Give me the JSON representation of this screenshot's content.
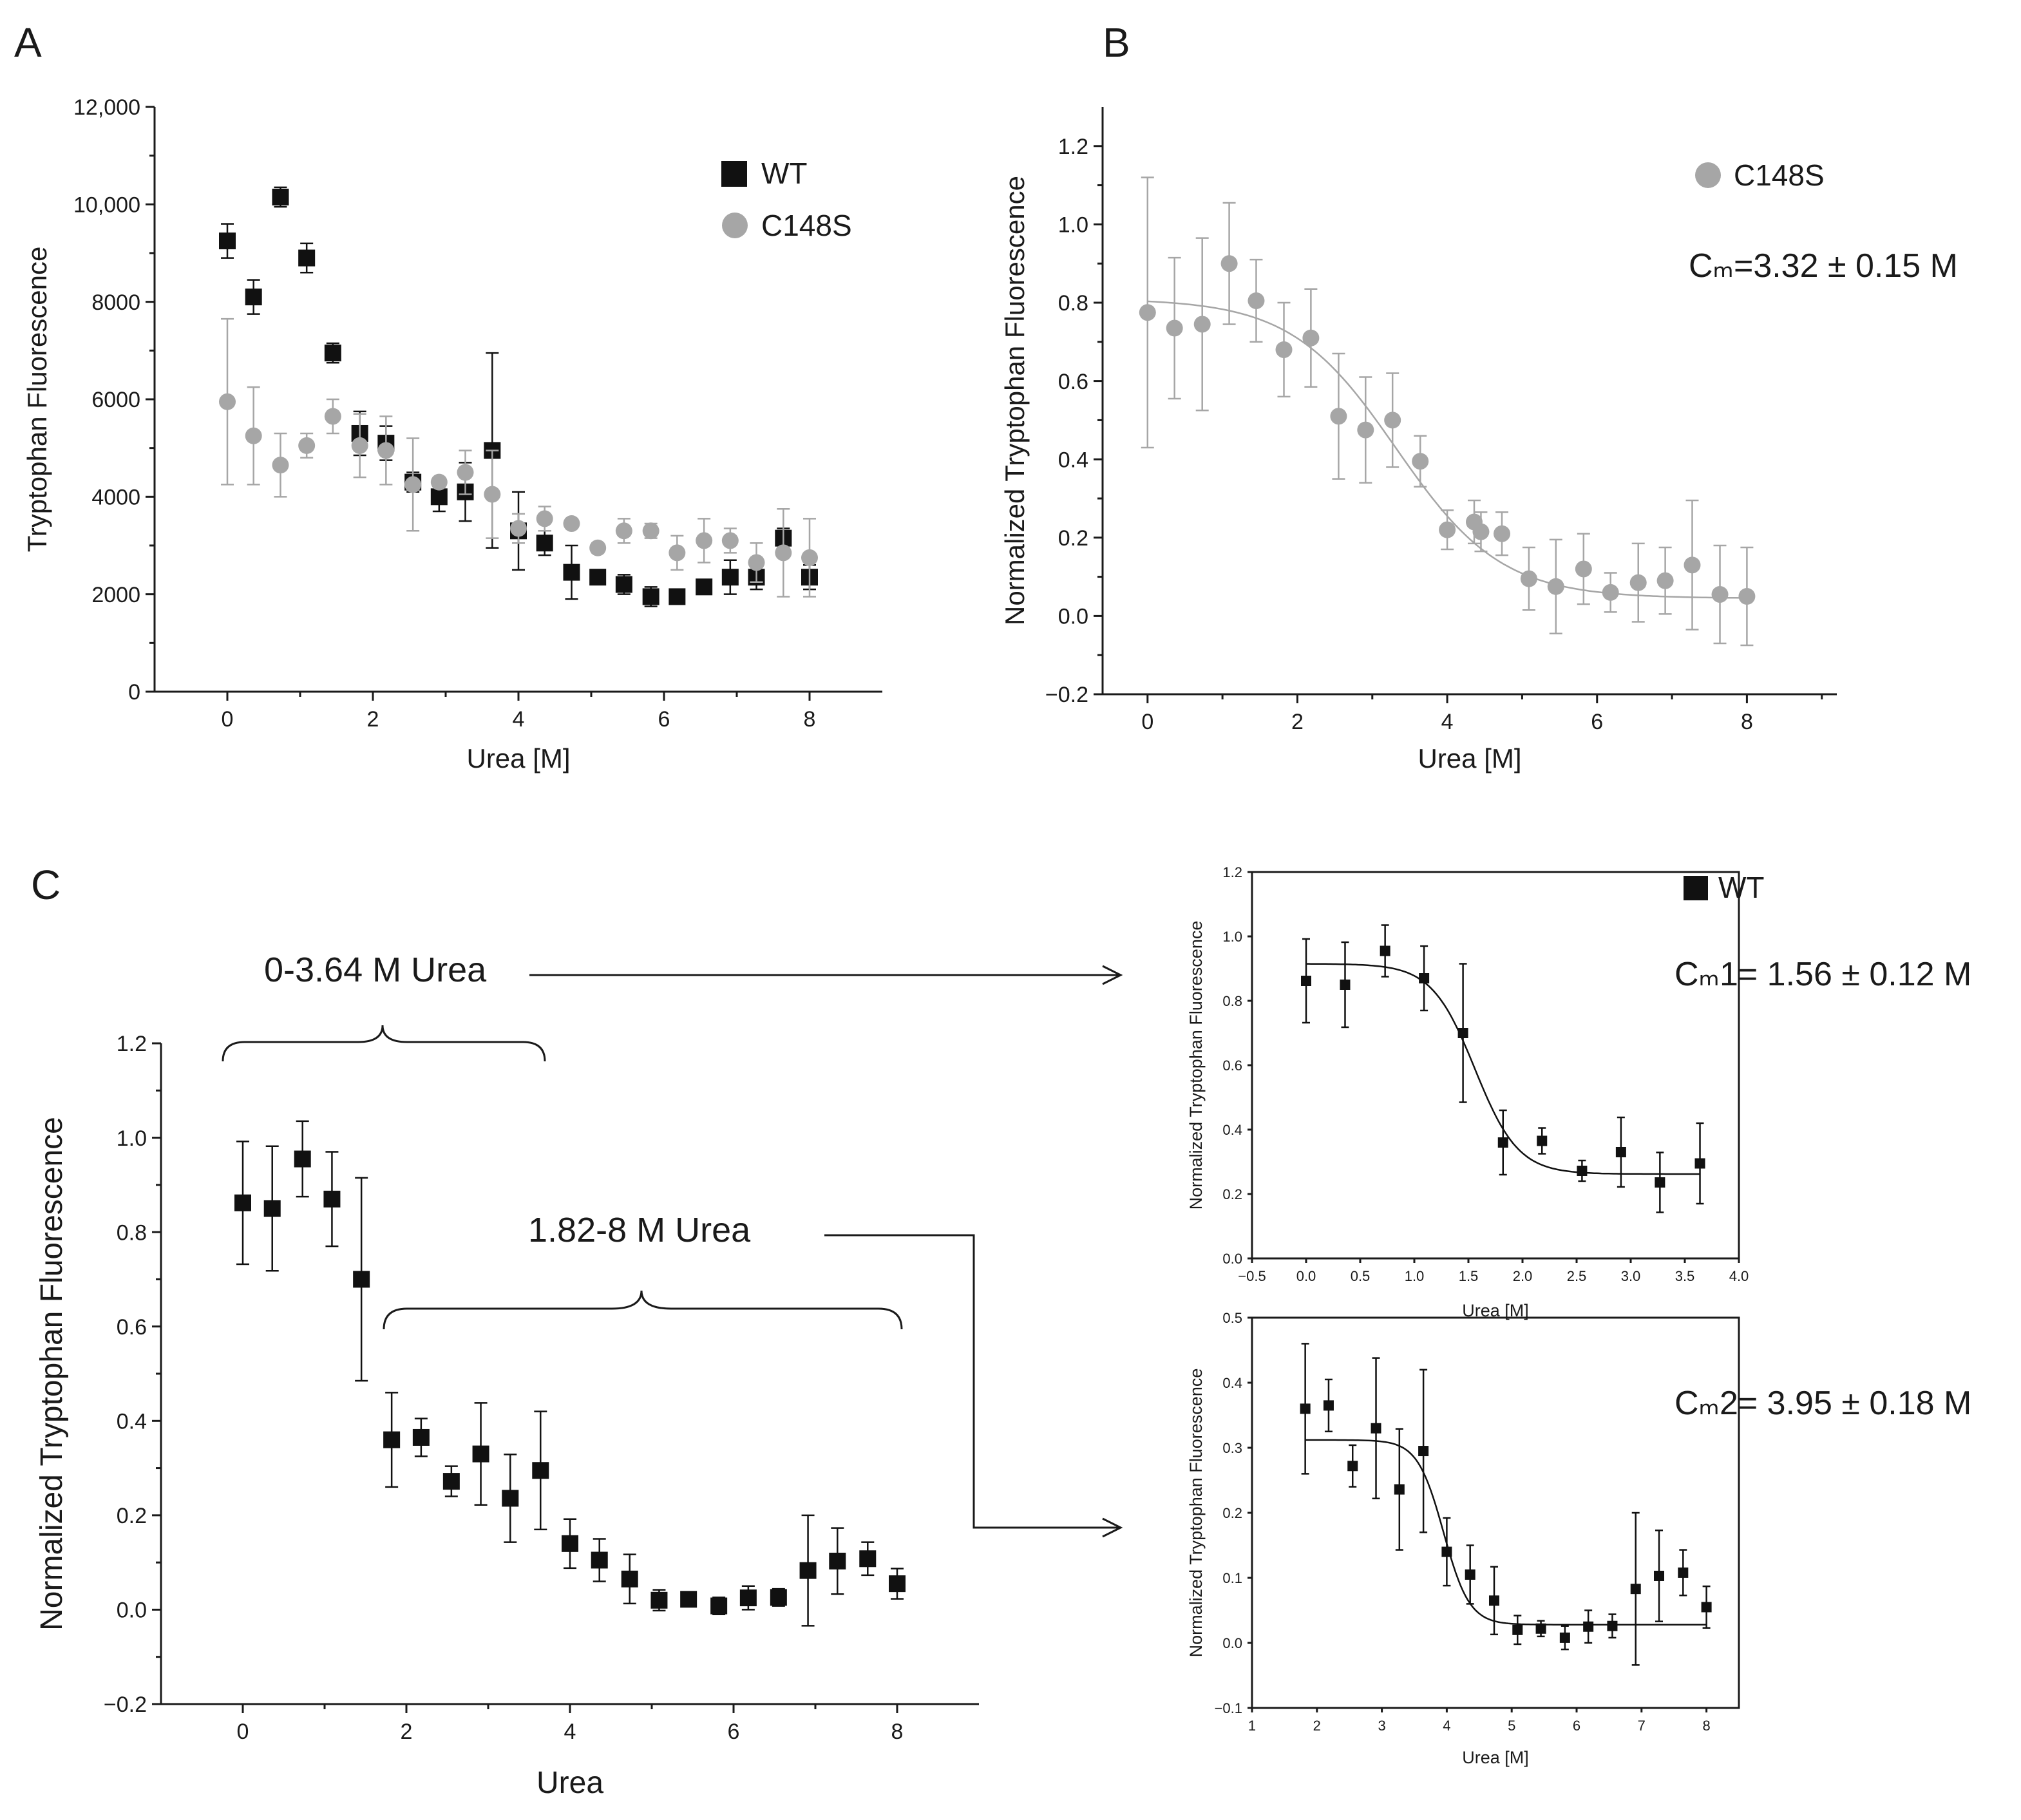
{
  "panel_labels": {
    "a": "A",
    "b": "B",
    "c": "C"
  },
  "annotations": {
    "range1": "0-3.64 M Urea",
    "range2": "1.82-8 M Urea",
    "cm_b": "Cₘ=3.32 ± 0.15 M",
    "cm1": "Cₘ1= 1.56 ± 0.12 M",
    "cm2": "Cₘ2= 3.95 ± 0.18 M"
  },
  "colors": {
    "wt": "#111111",
    "c148s": "#a6a6a6",
    "axis": "#1a1a1a"
  },
  "chart_data": [
    {
      "id": "A",
      "type": "scatter",
      "xlabel": "Urea [M]",
      "ylabel": "Tryptophan Fluorescence",
      "xlim": [
        -1,
        9
      ],
      "ylim": [
        0,
        12000
      ],
      "xticks": [
        0,
        2,
        4,
        6,
        8
      ],
      "xtick_labels": [
        "0",
        "2",
        "4",
        "6",
        "8"
      ],
      "yticks": [
        0,
        2000,
        4000,
        6000,
        8000,
        10000,
        12000
      ],
      "ytick_labels": [
        "0",
        "2000",
        "4000",
        "6000",
        "8000",
        "10,000",
        "12,000"
      ],
      "legend": "top-right",
      "grid": false,
      "series": [
        {
          "name": "WT",
          "marker": "square",
          "x": [
            0,
            0.36,
            0.73,
            1.09,
            1.45,
            1.82,
            2.18,
            2.55,
            2.91,
            3.27,
            3.64,
            4.0,
            4.36,
            4.73,
            5.09,
            5.45,
            5.82,
            6.18,
            6.55,
            6.91,
            7.27,
            7.64,
            8.0
          ],
          "y": [
            9250,
            8100,
            10150,
            8900,
            6950,
            5300,
            5100,
            4300,
            4000,
            4100,
            4950,
            3300,
            3050,
            2450,
            2350,
            2200,
            1950,
            1950,
            2150,
            2350,
            2350,
            3150,
            2350
          ],
          "err": [
            350,
            350,
            200,
            300,
            200,
            450,
            350,
            200,
            300,
            600,
            2000,
            800,
            250,
            550,
            150,
            200,
            200,
            100,
            100,
            350,
            250,
            200,
            250
          ]
        },
        {
          "name": "C148S",
          "marker": "circle",
          "x": [
            0,
            0.36,
            0.73,
            1.09,
            1.45,
            1.82,
            2.18,
            2.55,
            2.91,
            3.27,
            3.64,
            4.0,
            4.36,
            4.73,
            5.09,
            5.45,
            5.82,
            6.18,
            6.55,
            6.91,
            7.27,
            7.64,
            8.0
          ],
          "y": [
            5950,
            5250,
            4650,
            5050,
            5650,
            5050,
            4950,
            4250,
            4300,
            4500,
            4050,
            3350,
            3550,
            3450,
            2950,
            3300,
            3300,
            2850,
            3100,
            3100,
            2650,
            2850,
            2750
          ],
          "err": [
            1700,
            1000,
            650,
            250,
            350,
            650,
            700,
            950,
            100,
            450,
            900,
            300,
            250,
            100,
            100,
            250,
            150,
            350,
            450,
            250,
            400,
            900,
            800
          ]
        }
      ]
    },
    {
      "id": "B",
      "type": "scatter",
      "xlabel": "Urea [M]",
      "ylabel": "Normalized Tryptophan Fluorescence",
      "xlim": [
        -0.6,
        9.2
      ],
      "ylim": [
        -0.2,
        1.3
      ],
      "xticks": [
        0,
        2,
        4,
        6,
        8
      ],
      "xtick_labels": [
        "0",
        "2",
        "4",
        "6",
        "8"
      ],
      "yticks": [
        -0.2,
        0,
        0.2,
        0.4,
        0.6,
        0.8,
        1.0,
        1.2
      ],
      "ytick_labels": [
        "−0.2",
        "0.0",
        "0.2",
        "0.4",
        "0.6",
        "0.8",
        "1.0",
        "1.2"
      ],
      "legend": "top-right",
      "grid": false,
      "series": [
        {
          "name": "C148S",
          "marker": "circle",
          "x": [
            0,
            0.36,
            0.73,
            1.09,
            1.45,
            1.82,
            2.18,
            2.55,
            2.91,
            3.27,
            3.64,
            4.0,
            4.36,
            4.45,
            4.73,
            5.09,
            5.45,
            5.82,
            6.18,
            6.55,
            6.91,
            7.27,
            7.64,
            8.0
          ],
          "y": [
            0.775,
            0.735,
            0.745,
            0.9,
            0.805,
            0.68,
            0.71,
            0.51,
            0.475,
            0.5,
            0.395,
            0.22,
            0.24,
            0.215,
            0.21,
            0.095,
            0.075,
            0.12,
            0.06,
            0.085,
            0.09,
            0.13,
            0.055,
            0.05
          ],
          "err": [
            0.345,
            0.18,
            0.22,
            0.155,
            0.105,
            0.12,
            0.125,
            0.16,
            0.135,
            0.12,
            0.065,
            0.05,
            0.055,
            0.05,
            0.055,
            0.08,
            0.12,
            0.09,
            0.05,
            0.1,
            0.085,
            0.165,
            0.125,
            0.125
          ]
        }
      ],
      "fit": {
        "top": 0.81,
        "bottom": 0.045,
        "cm": 3.32,
        "slope": 0.7
      }
    },
    {
      "id": "C-main",
      "type": "scatter",
      "xlabel": "Urea",
      "ylabel": "Normalized Tryptophan Fluorescence",
      "xlim": [
        -1,
        9
      ],
      "ylim": [
        -0.2,
        1.2
      ],
      "xticks": [
        0,
        2,
        4,
        6,
        8
      ],
      "xtick_labels": [
        "0",
        "2",
        "4",
        "6",
        "8"
      ],
      "yticks": [
        -0.2,
        0,
        0.2,
        0.4,
        0.6,
        0.8,
        1.0,
        1.2
      ],
      "ytick_labels": [
        "−0.2",
        "0.0",
        "0.2",
        "0.4",
        "0.6",
        "0.8",
        "1.0",
        "1.2"
      ],
      "grid": false,
      "series": [
        {
          "name": "WT",
          "marker": "square",
          "x": [
            0,
            0.36,
            0.73,
            1.09,
            1.45,
            1.82,
            2.18,
            2.55,
            2.91,
            3.27,
            3.64,
            4.0,
            4.36,
            4.73,
            5.09,
            5.45,
            5.82,
            6.18,
            6.55,
            6.91,
            7.27,
            7.64,
            8.0
          ],
          "y": [
            0.862,
            0.85,
            0.955,
            0.87,
            0.7,
            0.36,
            0.365,
            0.272,
            0.33,
            0.236,
            0.295,
            0.14,
            0.105,
            0.065,
            0.02,
            0.022,
            0.008,
            0.025,
            0.026,
            0.083,
            0.103,
            0.108,
            0.055
          ],
          "err": [
            0.13,
            0.132,
            0.08,
            0.1,
            0.215,
            0.1,
            0.04,
            0.032,
            0.108,
            0.093,
            0.125,
            0.052,
            0.045,
            0.052,
            0.022,
            0.012,
            0.018,
            0.025,
            0.018,
            0.117,
            0.07,
            0.035,
            0.032
          ]
        }
      ]
    },
    {
      "id": "C-inset1",
      "type": "scatter",
      "xlabel": "Urea [M]",
      "ylabel": "Normalized Tryptophan Fluorescence",
      "xlim": [
        -0.5,
        4.0
      ],
      "ylim": [
        0,
        1.2
      ],
      "xticks": [
        -0.5,
        0,
        0.5,
        1.0,
        1.5,
        2.0,
        2.5,
        3.0,
        3.5,
        4.0
      ],
      "xtick_labels": [
        "−0.5",
        "0.0",
        "0.5",
        "1.0",
        "1.5",
        "2.0",
        "2.5",
        "3.0",
        "3.5",
        "4.0"
      ],
      "yticks": [
        0,
        0.2,
        0.4,
        0.6,
        0.8,
        1.0,
        1.2
      ],
      "ytick_labels": [
        "0.0",
        "0.2",
        "0.4",
        "0.6",
        "0.8",
        "1.0",
        "1.2"
      ],
      "legend": "top-right",
      "grid": false,
      "series": [
        {
          "name": "WT",
          "marker": "square",
          "x": [
            0,
            0.36,
            0.73,
            1.09,
            1.45,
            1.82,
            2.18,
            2.55,
            2.91,
            3.27,
            3.64
          ],
          "y": [
            0.862,
            0.85,
            0.955,
            0.87,
            0.7,
            0.36,
            0.365,
            0.272,
            0.33,
            0.236,
            0.295
          ],
          "err": [
            0.13,
            0.132,
            0.08,
            0.1,
            0.215,
            0.1,
            0.04,
            0.032,
            0.108,
            0.093,
            0.125
          ]
        }
      ],
      "fit": {
        "top": 0.915,
        "bottom": 0.262,
        "cm": 1.56,
        "slope": 0.2
      }
    },
    {
      "id": "C-inset2",
      "type": "scatter",
      "xlabel": "Urea [M]",
      "ylabel": "Normalized Tryptophan Fluorescence",
      "xlim": [
        1,
        8.5
      ],
      "ylim": [
        -0.1,
        0.5
      ],
      "xticks": [
        1,
        2,
        3,
        4,
        5,
        6,
        7,
        8
      ],
      "xtick_labels": [
        "1",
        "2",
        "3",
        "4",
        "5",
        "6",
        "7",
        "8"
      ],
      "yticks": [
        -0.1,
        0,
        0.1,
        0.2,
        0.3,
        0.4,
        0.5
      ],
      "ytick_labels": [
        "−0.1",
        "0.0",
        "0.1",
        "0.2",
        "0.3",
        "0.4",
        "0.5"
      ],
      "grid": false,
      "series": [
        {
          "name": "WT",
          "marker": "square",
          "x": [
            1.82,
            2.18,
            2.55,
            2.91,
            3.27,
            3.64,
            4.0,
            4.36,
            4.73,
            5.09,
            5.45,
            5.82,
            6.18,
            6.55,
            6.91,
            7.27,
            7.64,
            8.0
          ],
          "y": [
            0.36,
            0.365,
            0.272,
            0.33,
            0.236,
            0.295,
            0.14,
            0.105,
            0.065,
            0.02,
            0.022,
            0.008,
            0.025,
            0.026,
            0.083,
            0.103,
            0.108,
            0.055
          ],
          "err": [
            0.1,
            0.04,
            0.032,
            0.108,
            0.093,
            0.125,
            0.052,
            0.045,
            0.052,
            0.022,
            0.012,
            0.018,
            0.025,
            0.018,
            0.117,
            0.07,
            0.035,
            0.032
          ]
        }
      ],
      "fit": {
        "top": 0.312,
        "bottom": 0.028,
        "cm": 3.95,
        "slope": 0.2
      }
    }
  ]
}
